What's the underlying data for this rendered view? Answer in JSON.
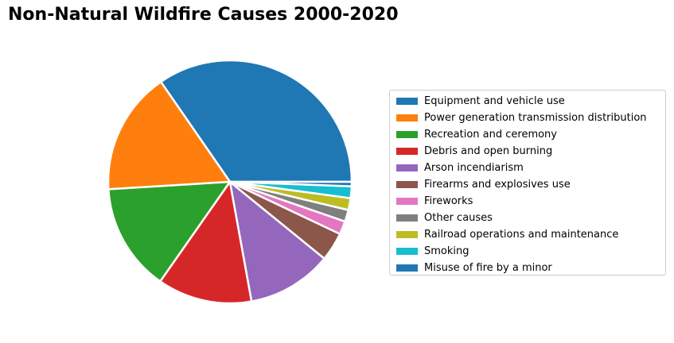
{
  "chart_data": {
    "type": "pie",
    "title": "Non-Natural Wildfire Causes 2000-2020",
    "legend_position": "right",
    "start_angle": 0,
    "direction": "counterclockwise",
    "slices": [
      {
        "label": "Equipment and vehicle use",
        "value": 35.3,
        "color": "#1f77b4"
      },
      {
        "label": "Power generation transmission distribution",
        "value": 16.7,
        "color": "#ff7f0e"
      },
      {
        "label": "Recreation and ceremony",
        "value": 14.6,
        "color": "#2ca02c"
      },
      {
        "label": "Debris and open burning",
        "value": 12.8,
        "color": "#d62728"
      },
      {
        "label": "Arson incendiarism",
        "value": 11.5,
        "color": "#9467bd"
      },
      {
        "label": "Firearms and explosives use",
        "value": 3.9,
        "color": "#8c564b"
      },
      {
        "label": "Fireworks",
        "value": 1.8,
        "color": "#e377c2"
      },
      {
        "label": "Other causes",
        "value": 1.6,
        "color": "#7f7f7f"
      },
      {
        "label": "Railroad operations and maintenance",
        "value": 1.6,
        "color": "#bcbd22"
      },
      {
        "label": "Smoking",
        "value": 1.6,
        "color": "#17becf"
      },
      {
        "label": "Misuse of fire by a minor",
        "value": 0.6,
        "color": "#1f77b4"
      }
    ]
  }
}
